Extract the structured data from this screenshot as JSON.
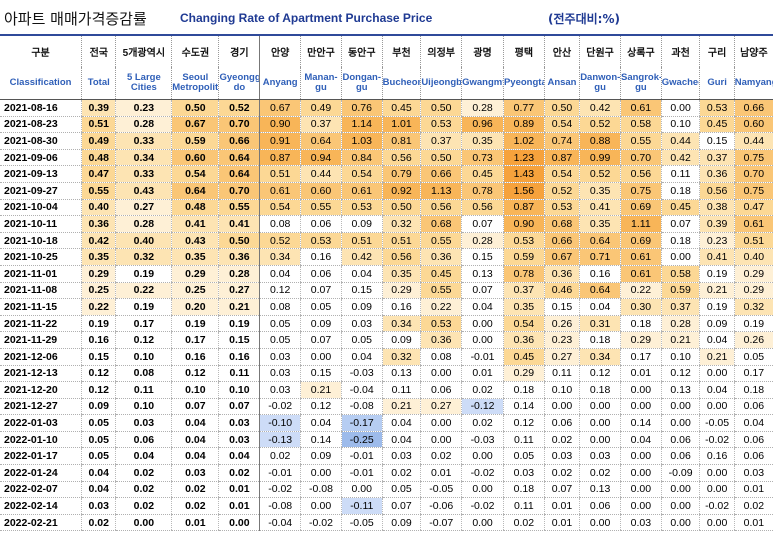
{
  "title": {
    "korean": "아파트 매매가격증감률",
    "english": "Changing Rate of Apartment Purchase Price",
    "unit": "(전주대비:%)"
  },
  "header": {
    "first_col": {
      "ko": "구분",
      "en": "Classification"
    },
    "columns": [
      {
        "ko": "전국",
        "en": "Total",
        "bold": true
      },
      {
        "ko": "5개광역시",
        "en": "5 Large Cities",
        "bold": true
      },
      {
        "ko": "수도권",
        "en": "Seoul Metropolitan",
        "bold": true
      },
      {
        "ko": "경기",
        "en": "Gyeonggi-do",
        "bold": true
      },
      {
        "ko": "안양",
        "en": "Anyang",
        "bold": false
      },
      {
        "ko": "만안구",
        "en": "Manan-gu",
        "bold": false
      },
      {
        "ko": "동안구",
        "en": "Dongan-gu",
        "bold": false
      },
      {
        "ko": "부천",
        "en": "Bucheon",
        "bold": false
      },
      {
        "ko": "의정부",
        "en": "Uijeongbu",
        "bold": false
      },
      {
        "ko": "광명",
        "en": "Gwangmyeong",
        "bold": false
      },
      {
        "ko": "평택",
        "en": "Pyeongtaek",
        "bold": false
      },
      {
        "ko": "안산",
        "en": "Ansan",
        "bold": false
      },
      {
        "ko": "단원구",
        "en": "Danwon-gu",
        "bold": false
      },
      {
        "ko": "상록구",
        "en": "Sangrok-gu",
        "bold": false
      },
      {
        "ko": "과천",
        "en": "Gwacheon",
        "bold": false
      },
      {
        "ko": "구리",
        "en": "Guri",
        "bold": false
      },
      {
        "ko": "남양주",
        "en": "Namyangju",
        "bold": false
      }
    ]
  },
  "colors": {
    "header_border": "#2f4a9a",
    "english_header": "#2f5fb8",
    "title_english": "#1f3a93"
  },
  "chart_data": {
    "type": "heatmap",
    "title": "아파트 매매가격증감률 Changing Rate of Apartment Purchase Price",
    "unit": "(전주대비:%)",
    "x": [
      "Total",
      "5 Large Cities",
      "Seoul Metropolitan",
      "Gyeonggi-do",
      "Anyang",
      "Manan-gu",
      "Dongan-gu",
      "Bucheon",
      "Uijeongbu",
      "Gwangmyeong",
      "Pyeongtaek",
      "Ansan",
      "Danwon-gu",
      "Sangrok-gu",
      "Gwacheon",
      "Guri",
      "Namyangju"
    ],
    "y": [
      "2021-08-16",
      "2021-08-23",
      "2021-08-30",
      "2021-09-06",
      "2021-09-13",
      "2021-09-27",
      "2021-10-04",
      "2021-10-11",
      "2021-10-18",
      "2021-10-25",
      "2021-11-01",
      "2021-11-08",
      "2021-11-15",
      "2021-11-22",
      "2021-11-29",
      "2021-12-06",
      "2021-12-13",
      "2021-12-20",
      "2021-12-27",
      "2022-01-03",
      "2022-01-10",
      "2022-01-17",
      "2022-01-24",
      "2022-02-07",
      "2022-02-14",
      "2022-02-21"
    ],
    "values": [
      [
        "0.39",
        "0.23",
        "0.50",
        "0.52",
        "0.67",
        "0.49",
        "0.76",
        "0.45",
        "0.50",
        "0.28",
        "0.77",
        "0.50",
        "0.42",
        "0.61",
        "0.00",
        "0.53",
        "0.66"
      ],
      [
        "0.51",
        "0.28",
        "0.67",
        "0.70",
        "0.90",
        "0.37",
        "1.14",
        "1.01",
        "0.53",
        "0.96",
        "0.89",
        "0.54",
        "0.52",
        "0.58",
        "0.10",
        "0.45",
        "0.60"
      ],
      [
        "0.49",
        "0.33",
        "0.59",
        "0.66",
        "0.91",
        "0.64",
        "1.03",
        "0.81",
        "0.37",
        "0.35",
        "1.02",
        "0.74",
        "0.88",
        "0.55",
        "0.44",
        "0.15",
        "0.44"
      ],
      [
        "0.48",
        "0.34",
        "0.60",
        "0.64",
        "0.87",
        "0.94",
        "0.84",
        "0.56",
        "0.50",
        "0.73",
        "1.23",
        "0.87",
        "0.99",
        "0.70",
        "0.42",
        "0.37",
        "0.75"
      ],
      [
        "0.47",
        "0.33",
        "0.54",
        "0.64",
        "0.51",
        "0.44",
        "0.54",
        "0.79",
        "0.66",
        "0.45",
        "1.43",
        "0.54",
        "0.52",
        "0.56",
        "0.11",
        "0.36",
        "0.70"
      ],
      [
        "0.55",
        "0.43",
        "0.64",
        "0.70",
        "0.61",
        "0.60",
        "0.61",
        "0.92",
        "1.13",
        "0.78",
        "1.56",
        "0.52",
        "0.35",
        "0.75",
        "0.18",
        "0.56",
        "0.75"
      ],
      [
        "0.40",
        "0.27",
        "0.48",
        "0.55",
        "0.54",
        "0.55",
        "0.53",
        "0.50",
        "0.56",
        "0.56",
        "0.87",
        "0.53",
        "0.41",
        "0.69",
        "0.45",
        "0.38",
        "0.47"
      ],
      [
        "0.36",
        "0.28",
        "0.41",
        "0.41",
        "0.08",
        "0.06",
        "0.09",
        "0.32",
        "0.68",
        "0.07",
        "0.90",
        "0.68",
        "0.35",
        "1.11",
        "0.07",
        "0.39",
        "0.61"
      ],
      [
        "0.42",
        "0.40",
        "0.43",
        "0.50",
        "0.52",
        "0.53",
        "0.51",
        "0.51",
        "0.55",
        "0.28",
        "0.53",
        "0.66",
        "0.64",
        "0.69",
        "0.18",
        "0.23",
        "0.51"
      ],
      [
        "0.35",
        "0.32",
        "0.35",
        "0.36",
        "0.34",
        "0.16",
        "0.42",
        "0.56",
        "0.36",
        "0.15",
        "0.59",
        "0.67",
        "0.71",
        "0.61",
        "0.00",
        "0.41",
        "0.40"
      ],
      [
        "0.29",
        "0.19",
        "0.29",
        "0.28",
        "0.04",
        "0.06",
        "0.04",
        "0.35",
        "0.45",
        "0.13",
        "0.78",
        "0.36",
        "0.16",
        "0.61",
        "0.58",
        "0.19",
        "0.29"
      ],
      [
        "0.25",
        "0.22",
        "0.25",
        "0.27",
        "0.12",
        "0.07",
        "0.15",
        "0.29",
        "0.55",
        "0.07",
        "0.37",
        "0.46",
        "0.64",
        "0.22",
        "0.59",
        "0.21",
        "0.29"
      ],
      [
        "0.22",
        "0.19",
        "0.20",
        "0.21",
        "0.08",
        "0.05",
        "0.09",
        "0.16",
        "0.22",
        "0.04",
        "0.35",
        "0.15",
        "0.04",
        "0.30",
        "0.37",
        "0.19",
        "0.32"
      ],
      [
        "0.19",
        "0.17",
        "0.19",
        "0.19",
        "0.05",
        "0.09",
        "0.03",
        "0.34",
        "0.53",
        "0.00",
        "0.54",
        "0.26",
        "0.31",
        "0.18",
        "0.28",
        "0.09",
        "0.19"
      ],
      [
        "0.16",
        "0.12",
        "0.17",
        "0.15",
        "0.05",
        "0.07",
        "0.05",
        "0.09",
        "0.36",
        "0.00",
        "0.36",
        "0.23",
        "0.18",
        "0.29",
        "0.21",
        "0.04",
        "0.26"
      ],
      [
        "0.15",
        "0.10",
        "0.16",
        "0.16",
        "0.03",
        "0.00",
        "0.04",
        "0.32",
        "0.08",
        "-0.01",
        "0.45",
        "0.27",
        "0.34",
        "0.17",
        "0.10",
        "0.21",
        "0.05"
      ],
      [
        "0.12",
        "0.08",
        "0.12",
        "0.11",
        "0.03",
        "0.15",
        "-0.03",
        "0.13",
        "0.00",
        "0.01",
        "0.29",
        "0.11",
        "0.12",
        "0.01",
        "0.12",
        "0.00",
        "0.17"
      ],
      [
        "0.12",
        "0.11",
        "0.10",
        "0.10",
        "0.03",
        "0.21",
        "-0.04",
        "0.11",
        "0.06",
        "0.02",
        "0.18",
        "0.10",
        "0.18",
        "0.00",
        "0.13",
        "0.04",
        "0.18"
      ],
      [
        "0.09",
        "0.10",
        "0.07",
        "0.07",
        "-0.02",
        "0.12",
        "-0.08",
        "0.21",
        "0.27",
        "-0.12",
        "0.14",
        "0.00",
        "0.00",
        "0.00",
        "0.00",
        "0.00",
        "0.06"
      ],
      [
        "0.05",
        "0.03",
        "0.04",
        "0.03",
        "-0.10",
        "0.04",
        "-0.17",
        "0.04",
        "0.00",
        "0.02",
        "0.12",
        "0.06",
        "0.00",
        "0.14",
        "0.00",
        "-0.05",
        "0.04"
      ],
      [
        "0.05",
        "0.06",
        "0.04",
        "0.03",
        "-0.13",
        "0.14",
        "-0.25",
        "0.04",
        "0.00",
        "-0.03",
        "0.11",
        "0.02",
        "0.00",
        "0.04",
        "0.06",
        "-0.02",
        "0.06"
      ],
      [
        "0.05",
        "0.04",
        "0.04",
        "0.04",
        "0.02",
        "0.09",
        "-0.01",
        "0.03",
        "0.02",
        "0.00",
        "0.05",
        "0.03",
        "0.03",
        "0.00",
        "0.06",
        "0.16",
        "0.06"
      ],
      [
        "0.04",
        "0.02",
        "0.03",
        "0.02",
        "-0.01",
        "0.00",
        "-0.01",
        "0.02",
        "0.01",
        "-0.02",
        "0.03",
        "0.02",
        "0.02",
        "0.00",
        "-0.09",
        "0.00",
        "0.03"
      ],
      [
        "0.04",
        "0.02",
        "0.02",
        "0.01",
        "-0.02",
        "-0.08",
        "0.00",
        "0.05",
        "-0.05",
        "0.00",
        "0.18",
        "0.07",
        "0.13",
        "0.00",
        "0.00",
        "0.00",
        "0.01"
      ],
      [
        "0.03",
        "0.02",
        "0.02",
        "0.01",
        "-0.08",
        "0.00",
        "-0.11",
        "0.07",
        "-0.06",
        "-0.02",
        "0.11",
        "0.01",
        "0.06",
        "0.00",
        "0.00",
        "-0.02",
        "0.02"
      ],
      [
        "0.02",
        "0.00",
        "0.01",
        "0.00",
        "-0.04",
        "-0.02",
        "-0.05",
        "0.09",
        "-0.07",
        "0.00",
        "0.02",
        "0.01",
        "0.00",
        "0.03",
        "0.00",
        "0.00",
        "0.01"
      ]
    ]
  }
}
